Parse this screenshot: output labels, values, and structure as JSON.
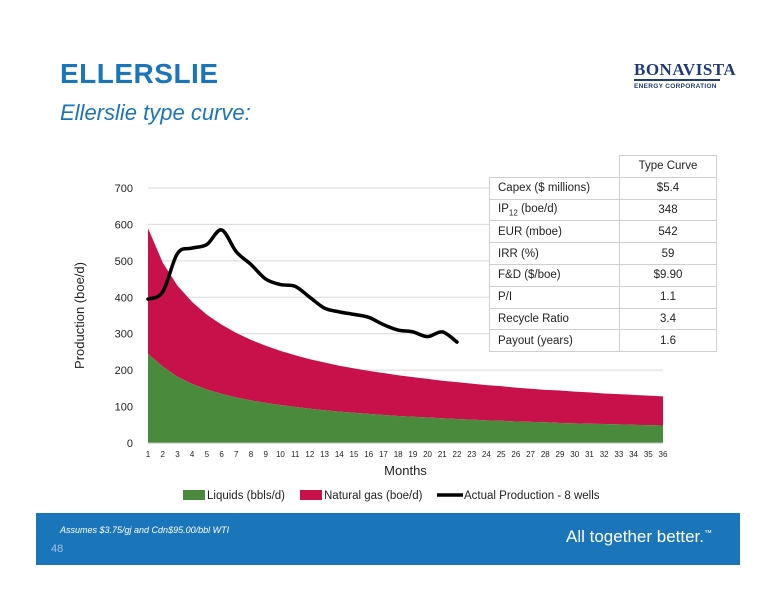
{
  "slide": {
    "title": "ELLERSLIE",
    "subtitle": "Ellerslie type curve:",
    "logo": {
      "name": "BONAVISTA",
      "subtitle": "ENERGY CORPORATION"
    },
    "footer": {
      "note": "Assumes $3.75/gj and Cdn$95.00/bbl WTI",
      "page_number": "48",
      "tagline": "All together better.",
      "trademark": "™"
    }
  },
  "kpi_table": {
    "header": "Type Curve",
    "rows": [
      {
        "label": "Capex ($ millions)",
        "value": "$5.4"
      },
      {
        "label": "IP",
        "sub": "12",
        "suffix": " (boe/d)",
        "value": "348"
      },
      {
        "label": "EUR (mboe)",
        "value": "542"
      },
      {
        "label": "IRR (%)",
        "value": "59"
      },
      {
        "label": "F&D ($/boe)",
        "value": "$9.90"
      },
      {
        "label": "P/I",
        "value": "1.1"
      },
      {
        "label": "Recycle Ratio",
        "value": "3.4"
      },
      {
        "label": "Payout (years)",
        "value": "1.6"
      }
    ]
  },
  "chart_data": {
    "type": "area",
    "xlabel": "Months",
    "ylabel": "Production (boe/d)",
    "x": [
      1,
      2,
      3,
      4,
      5,
      6,
      7,
      8,
      9,
      10,
      11,
      12,
      13,
      14,
      15,
      16,
      17,
      18,
      19,
      20,
      21,
      22,
      23,
      24,
      25,
      26,
      27,
      28,
      29,
      30,
      31,
      32,
      33,
      34,
      35,
      36
    ],
    "ylim": [
      0,
      700
    ],
    "yticks": [
      0,
      100,
      200,
      300,
      400,
      500,
      600,
      700
    ],
    "grid": true,
    "legend_position": "bottom",
    "colors": {
      "liquids": "#4a8a3c",
      "gas": "#c8104b",
      "actual": "#000000",
      "brand": "#1b75bb"
    },
    "series": [
      {
        "name": "Liquids (bbls/d)",
        "kind": "area",
        "values": [
          245,
          210,
          182,
          162,
          147,
          135,
          125,
          117,
          110,
          104,
          99,
          94,
          90,
          86,
          83,
          80,
          77,
          74,
          72,
          70,
          68,
          66,
          64,
          62,
          61,
          59,
          58,
          57,
          55,
          54,
          53,
          52,
          51,
          50,
          49,
          48
        ]
      },
      {
        "name": "Natural gas (boe/d)",
        "kind": "stacked-area-total",
        "values": [
          590,
          495,
          432,
          387,
          352,
          325,
          302,
          283,
          267,
          253,
          241,
          230,
          221,
          212,
          205,
          198,
          192,
          186,
          181,
          176,
          171,
          167,
          163,
          159,
          156,
          152,
          149,
          146,
          144,
          141,
          139,
          136,
          134,
          132,
          130,
          128
        ]
      },
      {
        "name": "Actual Production - 8 wells",
        "kind": "line",
        "x": [
          1,
          2,
          3,
          4,
          5,
          6,
          7,
          8,
          9,
          10,
          11,
          12,
          13,
          14,
          15,
          16,
          17,
          18,
          19,
          20,
          21,
          22
        ],
        "values": [
          395,
          415,
          520,
          535,
          545,
          585,
          525,
          490,
          450,
          435,
          430,
          400,
          370,
          360,
          353,
          345,
          325,
          310,
          305,
          292,
          305,
          277
        ]
      }
    ]
  }
}
